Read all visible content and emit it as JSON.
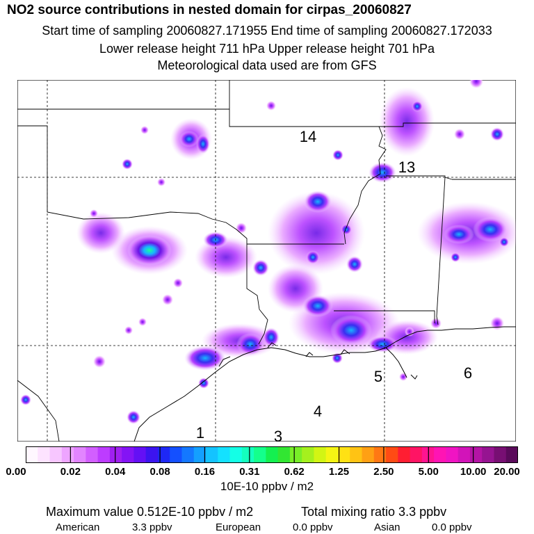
{
  "header": {
    "title": "NO2 source contributions in nested domain for cirpas_20060827",
    "sampling": "Start time of sampling 20060827.171955     End time of sampling 20060827.172033",
    "release": "Lower release height  711 hPa       Upper release height  701 hPa",
    "met": "Meteorological data used are from GFS"
  },
  "map": {
    "region_labels": [
      "14",
      "13",
      "1",
      "3",
      "4",
      "5",
      "6"
    ],
    "colors": {
      "light": "#e9a6ff",
      "mid": "#b640ff",
      "deep": "#6a14e6",
      "core": "#18b4ff",
      "peak": "#1aff9a"
    }
  },
  "colorbar": {
    "ticks": [
      "0.00",
      "0.02",
      "0.04",
      "0.08",
      "0.16",
      "0.31",
      "0.62",
      "1.25",
      "2.50",
      "5.00",
      "10.00",
      "20.00"
    ],
    "units": "10E-10 ppbv / m2",
    "colors": [
      "#fff7ff",
      "#fde3ff",
      "#f7c6ff",
      "#eea5ff",
      "#e285ff",
      "#d25fff",
      "#bd3cff",
      "#a020f0",
      "#8414f5",
      "#6410f5",
      "#3c14f0",
      "#1e28f5",
      "#1450ff",
      "#1478ff",
      "#14a0ff",
      "#14c3ff",
      "#14e1ff",
      "#14ffe6",
      "#14ffbe",
      "#14ff8c",
      "#14f050",
      "#32e632",
      "#78ee28",
      "#a5f01e",
      "#d2f514",
      "#f5f514",
      "#ffe114",
      "#ffc314",
      "#ffa014",
      "#ff7814",
      "#ff4b14",
      "#ff1e32",
      "#ff1464",
      "#ff1491",
      "#ff14b4",
      "#f014c3",
      "#d214b9",
      "#b414a5",
      "#961491",
      "#780f73",
      "#5a0a5a"
    ]
  },
  "footer": {
    "max_value": "Maximum value  0.512E-10 ppbv / m2",
    "total": "Total mixing ratio        3.3 ppbv",
    "american_label": "American",
    "american_value": "3.3 ppbv",
    "european_label": "European",
    "european_value": "0.0 ppbv",
    "asian_label": "Asian",
    "asian_value": "0.0 ppbv"
  }
}
